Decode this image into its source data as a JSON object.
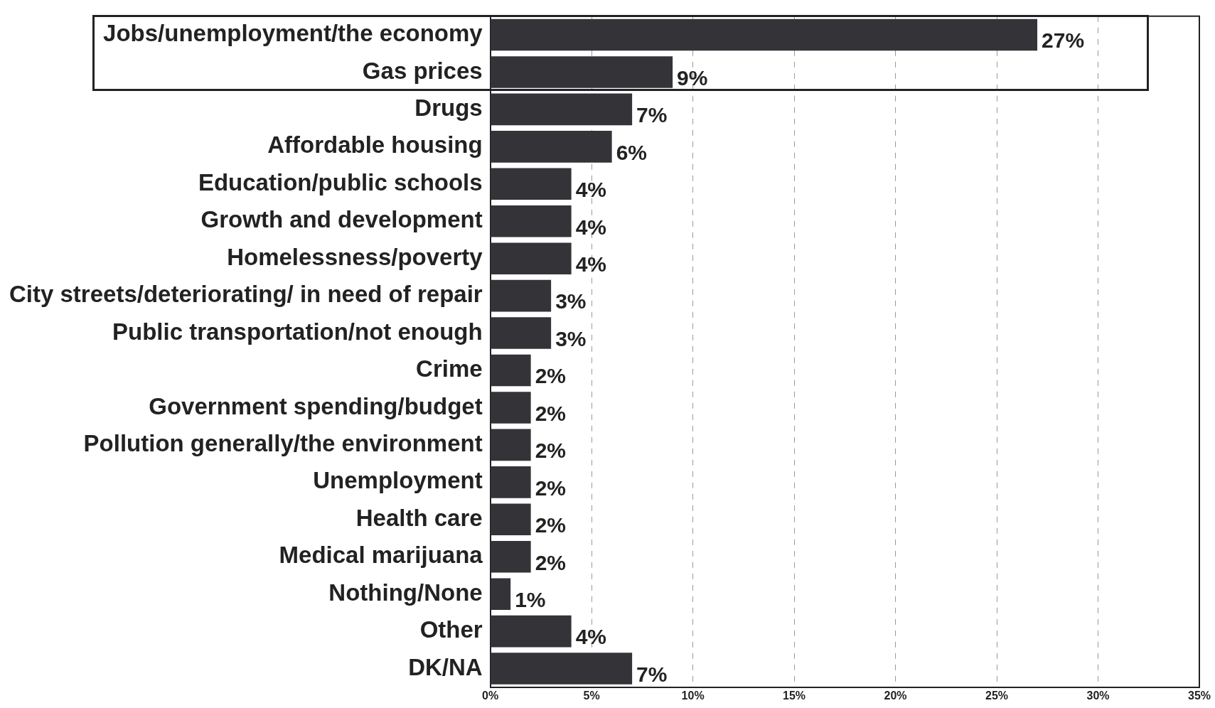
{
  "chart_data": {
    "type": "bar",
    "orientation": "horizontal",
    "categories": [
      "Jobs/unemployment/the economy",
      "Gas prices",
      "Drugs",
      "Affordable housing",
      "Education/public schools",
      "Growth and development",
      "Homelessness/poverty",
      "City streets/deteriorating/ in need of repair",
      "Public transportation/not enough",
      "Crime",
      "Government spending/budget",
      "Pollution generally/the environment",
      "Unemployment",
      "Health care",
      "Medical marijuana",
      "Nothing/None",
      "Other",
      "DK/NA"
    ],
    "values": [
      27,
      9,
      7,
      6,
      4,
      4,
      4,
      3,
      3,
      2,
      2,
      2,
      2,
      2,
      2,
      1,
      4,
      7
    ],
    "value_labels": [
      "27%",
      "9%",
      "7%",
      "6%",
      "4%",
      "4%",
      "4%",
      "3%",
      "3%",
      "2%",
      "2%",
      "2%",
      "2%",
      "2%",
      "2%",
      "1%",
      "4%",
      "7%"
    ],
    "color": "#333338",
    "xlim": [
      0,
      35
    ],
    "xticks": [
      {
        "value": 0,
        "label": "0%"
      },
      {
        "value": 5,
        "label": "5%"
      },
      {
        "value": 10,
        "label": "10%"
      },
      {
        "value": 15,
        "label": "15%"
      },
      {
        "value": 20,
        "label": "20%"
      },
      {
        "value": 25,
        "label": "25%"
      },
      {
        "value": 30,
        "label": "30%"
      },
      {
        "value": 35,
        "label": "35%"
      }
    ],
    "grid": "x",
    "legend": false
  }
}
